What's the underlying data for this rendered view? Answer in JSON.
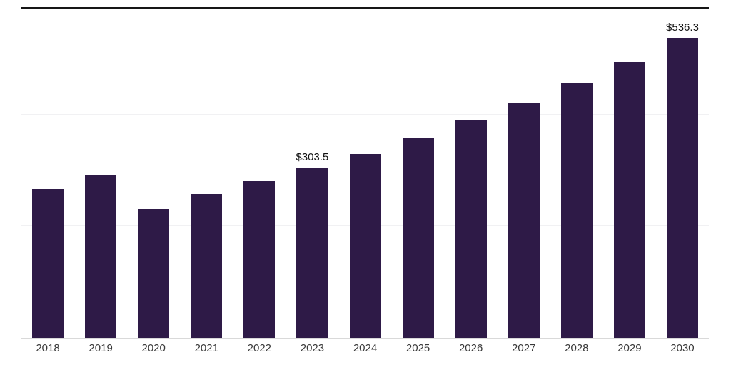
{
  "chart_data": {
    "type": "bar",
    "title": "",
    "xlabel": "",
    "ylabel": "",
    "categories": [
      "2018",
      "2019",
      "2020",
      "2021",
      "2022",
      "2023",
      "2024",
      "2025",
      "2026",
      "2027",
      "2028",
      "2029",
      "2030"
    ],
    "values": [
      267,
      291,
      231,
      258,
      281,
      303.5,
      330,
      358,
      389,
      420,
      456,
      494,
      536.3
    ],
    "data_labels": [
      null,
      null,
      null,
      null,
      null,
      "$303.5",
      null,
      null,
      null,
      null,
      null,
      null,
      "$536.3"
    ],
    "ylim": [
      0,
      590
    ],
    "grid": true,
    "grid_interval": 100,
    "legend": "none",
    "bar_color": "#2e1a47",
    "grid_color": "#f1f1f3",
    "axis_text_color": "#3a3a3a",
    "top_border_color": "#161616"
  }
}
